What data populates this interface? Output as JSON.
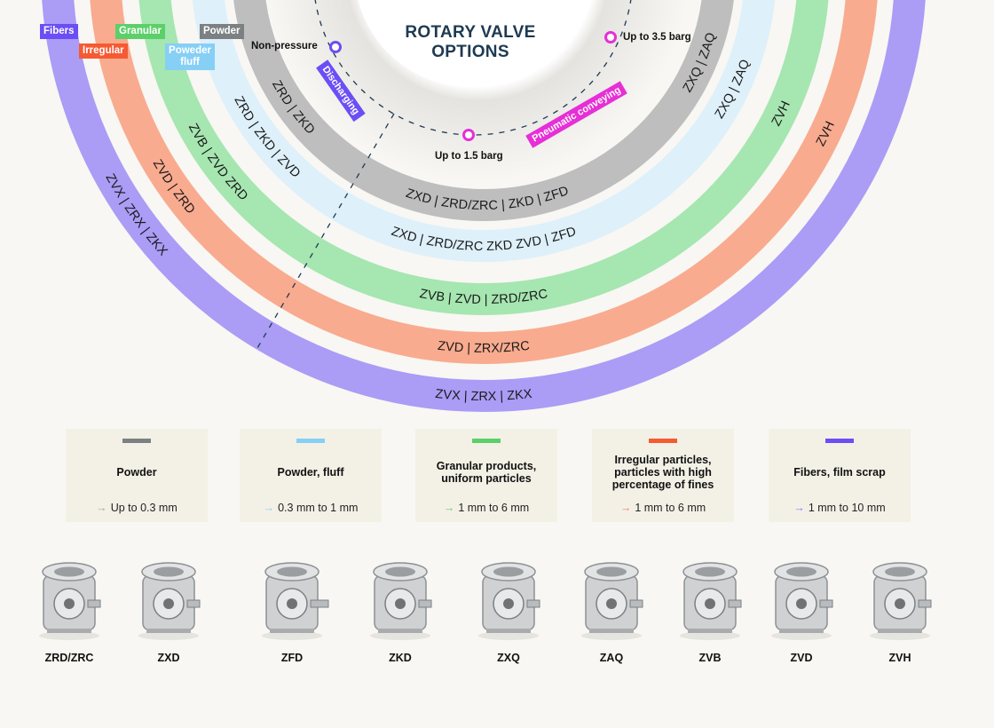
{
  "title": {
    "line1": "ROTARY VALVE",
    "line2": "OPTIONS"
  },
  "legend": [
    {
      "label": "Fibers",
      "color": "#6b4ef5"
    },
    {
      "label": "Irregular",
      "color": "#f55a33"
    },
    {
      "label": "Granular",
      "color": "#5ccf6a"
    },
    {
      "label": "Poweder fluff",
      "color": "#86cff5"
    },
    {
      "label": "Powder",
      "color": "#7c8082"
    }
  ],
  "pressure": {
    "non_pressure": "Non-pressure",
    "low": "Up to 1.5 barg",
    "high": "Up to 3.5 barg",
    "discharging": "Discharging",
    "pneumatic": "Pneumatic conveying"
  },
  "rings": {
    "powder": {
      "color": "#bdbebd",
      "left": "ZRD | ZKD",
      "bottom": "ZXD | ZRD/ZRC | ZKD | ZFD",
      "right": "ZXQ | ZAQ"
    },
    "fluff": {
      "color": "#def0fa",
      "left": "ZRD | ZKD | ZVD",
      "bottom": "ZXD | ZRD/ZRC  ZKD  ZVD | ZFD",
      "right": "ZXQ | ZAQ"
    },
    "granular": {
      "color": "#a6e6b0",
      "left": "ZVB | ZVD  ZRD",
      "bottom": "ZVB | ZVD | ZRD/ZRC",
      "right": "ZVH"
    },
    "irregular": {
      "color": "#f9ab8f",
      "left": "ZVD | ZRD",
      "bottom": "ZVD | ZRX/ZRC",
      "right": "ZVH"
    },
    "fibers": {
      "color": "#ab9cf6",
      "left": "ZVX | ZRX | ZKX",
      "bottom": "ZVX | ZRX | ZKX"
    }
  },
  "cards": [
    {
      "title": "Powder",
      "range": "Up to 0.3 mm",
      "color": "#7c8082",
      "arrow_color": "#a0a3a5"
    },
    {
      "title": "Powder, fluff",
      "range": "0.3 mm to 1 mm",
      "color": "#86cff5",
      "arrow_color": "#86cff5"
    },
    {
      "title": "Granular products, uniform particles",
      "range": "1 mm to 6 mm",
      "color": "#5ccf6a",
      "arrow_color": "#5ccf6a"
    },
    {
      "title": "Irregular particles, particles with high percentage of fines",
      "range": "1 mm to 6 mm",
      "color": "#f55a33",
      "arrow_color": "#f57a5a"
    },
    {
      "title": "Fibers, film scrap",
      "range": "1 mm to 10 mm",
      "color": "#6b4ef5",
      "arrow_color": "#8a72f7"
    }
  ],
  "arrow_glyph": "→",
  "products": [
    "ZRD/ZRC",
    "ZXD",
    "ZFD",
    "ZKD",
    "ZXQ",
    "ZAQ",
    "ZVB",
    "ZVD",
    "ZVH"
  ]
}
